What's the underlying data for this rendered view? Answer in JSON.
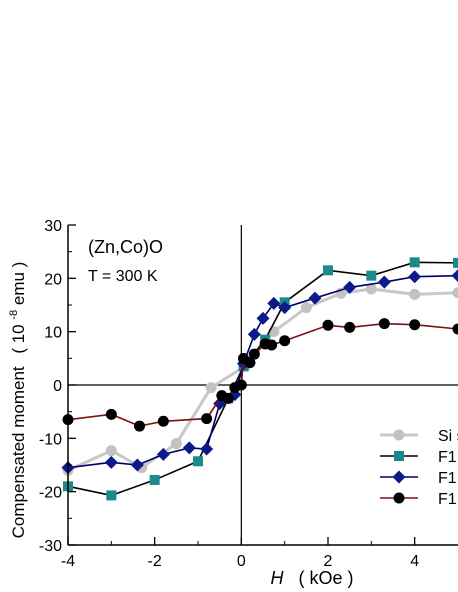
{
  "chart_data": {
    "type": "line",
    "title": "",
    "annotations": {
      "line1": "(Zn,Co)O",
      "line2": "T = 300 K"
    },
    "xlabel": {
      "italic": "H",
      "unit": "( kOe )"
    },
    "ylabel": {
      "main": "Compensated  moment",
      "unit_prefix": "( 10",
      "unit_exp": "-8",
      "unit_suffix": "emu )"
    },
    "xlim": [
      -4,
      5
    ],
    "ylim": [
      -30,
      30
    ],
    "xticks": [
      -4,
      -2,
      0,
      2,
      4
    ],
    "yticks": [
      -30,
      -20,
      -10,
      0,
      10,
      20,
      30
    ],
    "legend_position": "bottom-right",
    "series": [
      {
        "name": "Si s",
        "color": "#c2c2c2",
        "line_color": "#c8c8c8",
        "marker": "circle",
        "points": [
          [
            -4,
            -16
          ],
          [
            -3,
            -12.3
          ],
          [
            -2.3,
            -15.5
          ],
          [
            -1.5,
            -11
          ],
          [
            -0.7,
            -0.5
          ],
          [
            0.1,
            3.6
          ],
          [
            0.75,
            10
          ],
          [
            1.5,
            14.5
          ],
          [
            2.3,
            17.2
          ],
          [
            3,
            18
          ],
          [
            4,
            17
          ],
          [
            5,
            17.3
          ]
        ]
      },
      {
        "name": "F1",
        "color": "#1a8a8a",
        "line_color": "#000000",
        "marker": "square",
        "points": [
          [
            -4,
            -19
          ],
          [
            -3,
            -20.7
          ],
          [
            -2,
            -17.8
          ],
          [
            -1,
            -14.3
          ],
          [
            -0.3,
            -2.5
          ],
          [
            0.05,
            3.5
          ],
          [
            0.55,
            8.5
          ],
          [
            1,
            15.5
          ],
          [
            2,
            21.5
          ],
          [
            3,
            20.5
          ],
          [
            4,
            23
          ],
          [
            5,
            22.9
          ]
        ]
      },
      {
        "name": "F1",
        "color": "#0d1a8a",
        "line_color": "#000066",
        "marker": "diamond",
        "points": [
          [
            -4,
            -15.5
          ],
          [
            -3,
            -14.5
          ],
          [
            -2.4,
            -15
          ],
          [
            -1.8,
            -13
          ],
          [
            -1.2,
            -11.8
          ],
          [
            -0.8,
            -12
          ],
          [
            -0.5,
            -3.5
          ],
          [
            -0.15,
            -1.8
          ],
          [
            0.05,
            4
          ],
          [
            0.3,
            9.5
          ],
          [
            0.5,
            12.5
          ],
          [
            0.75,
            15.3
          ],
          [
            1,
            14.5
          ],
          [
            1.7,
            16.3
          ],
          [
            2.5,
            18.3
          ],
          [
            3.3,
            19.3
          ],
          [
            4,
            20.3
          ],
          [
            5,
            20.5
          ]
        ]
      },
      {
        "name": "F1",
        "color": "#000000",
        "line_color": "#7a1010",
        "marker": "circle",
        "points": [
          [
            -4,
            -6.5
          ],
          [
            -3,
            -5.5
          ],
          [
            -2.35,
            -7.7
          ],
          [
            -1.8,
            -6.8
          ],
          [
            -0.8,
            -6.3
          ],
          [
            -0.45,
            -2
          ],
          [
            -0.3,
            -2.5
          ],
          [
            -0.15,
            -0.5
          ],
          [
            0,
            0
          ],
          [
            0.05,
            5
          ],
          [
            0.2,
            4.2
          ],
          [
            0.3,
            5.8
          ],
          [
            0.55,
            7.7
          ],
          [
            0.7,
            7.5
          ],
          [
            1,
            8.3
          ],
          [
            2,
            11.2
          ],
          [
            2.5,
            10.8
          ],
          [
            3.3,
            11.5
          ],
          [
            4,
            11.3
          ],
          [
            5,
            10.5
          ]
        ]
      }
    ]
  }
}
